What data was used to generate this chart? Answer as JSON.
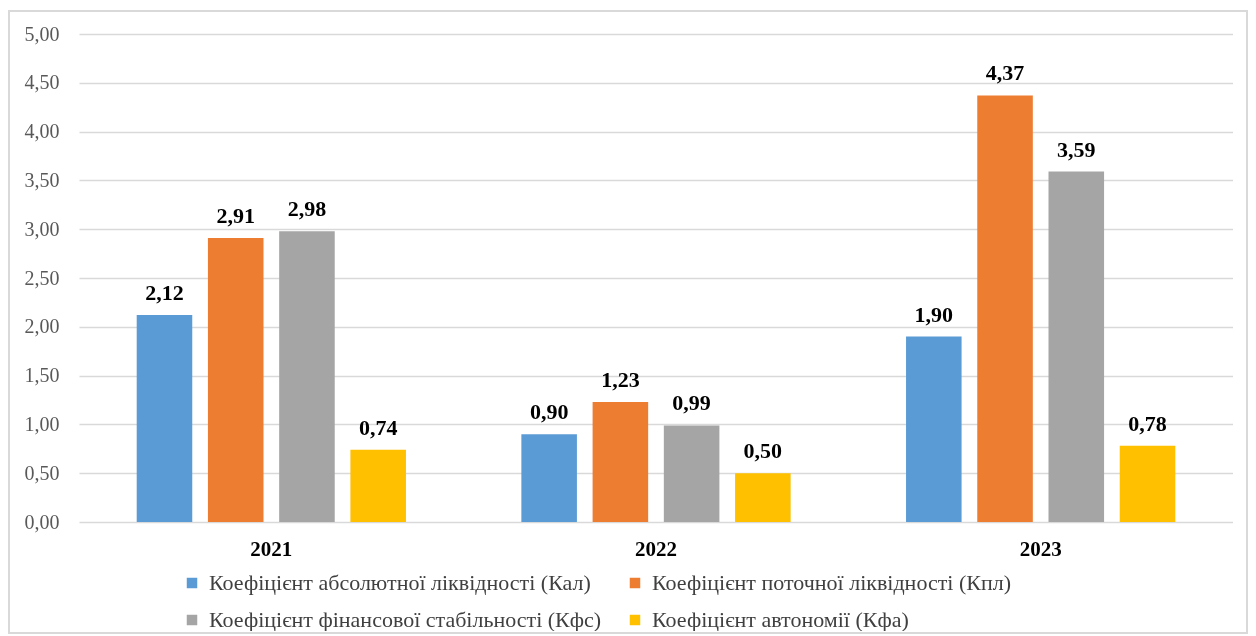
{
  "chart_data": {
    "type": "bar",
    "categories": [
      "2021",
      "2022",
      "2023"
    ],
    "series": [
      {
        "name": "Коефіцієнт абсолютної ліквідності (Кал)",
        "color": "#5b9bd5",
        "values": [
          2.12,
          0.9,
          1.9
        ],
        "value_labels": [
          "2,12",
          "0,90",
          "1,90"
        ]
      },
      {
        "name": "Коефіцієнт поточної ліквідності (Кпл)",
        "color": "#ed7d31",
        "values": [
          2.91,
          1.23,
          4.37
        ],
        "value_labels": [
          "2,91",
          "1,23",
          "4,37"
        ]
      },
      {
        "name": "Коефіцієнт фінансової стабільності (Кфс)",
        "color": "#a5a5a5",
        "values": [
          2.98,
          0.99,
          3.59
        ],
        "value_labels": [
          "2,98",
          "0,99",
          "3,59"
        ]
      },
      {
        "name": "Коефіцієнт автономії (Кфа)",
        "color": "#ffc000",
        "values": [
          0.74,
          0.5,
          0.78
        ],
        "value_labels": [
          "0,74",
          "0,50",
          "0,78"
        ]
      }
    ],
    "ylim": [
      0,
      5
    ],
    "yticks": [
      {
        "value": 0,
        "label": "0,00"
      },
      {
        "value": 0.5,
        "label": "0,50"
      },
      {
        "value": 1,
        "label": "1,00"
      },
      {
        "value": 1.5,
        "label": "1,50"
      },
      {
        "value": 2,
        "label": "2,00"
      },
      {
        "value": 2.5,
        "label": "2,50"
      },
      {
        "value": 3,
        "label": "3,00"
      },
      {
        "value": 3.5,
        "label": "3,50"
      },
      {
        "value": 4,
        "label": "4,00"
      },
      {
        "value": 4.5,
        "label": "4,50"
      },
      {
        "value": 5,
        "label": "5,00"
      }
    ],
    "grid": "y",
    "legend": "bottom"
  }
}
